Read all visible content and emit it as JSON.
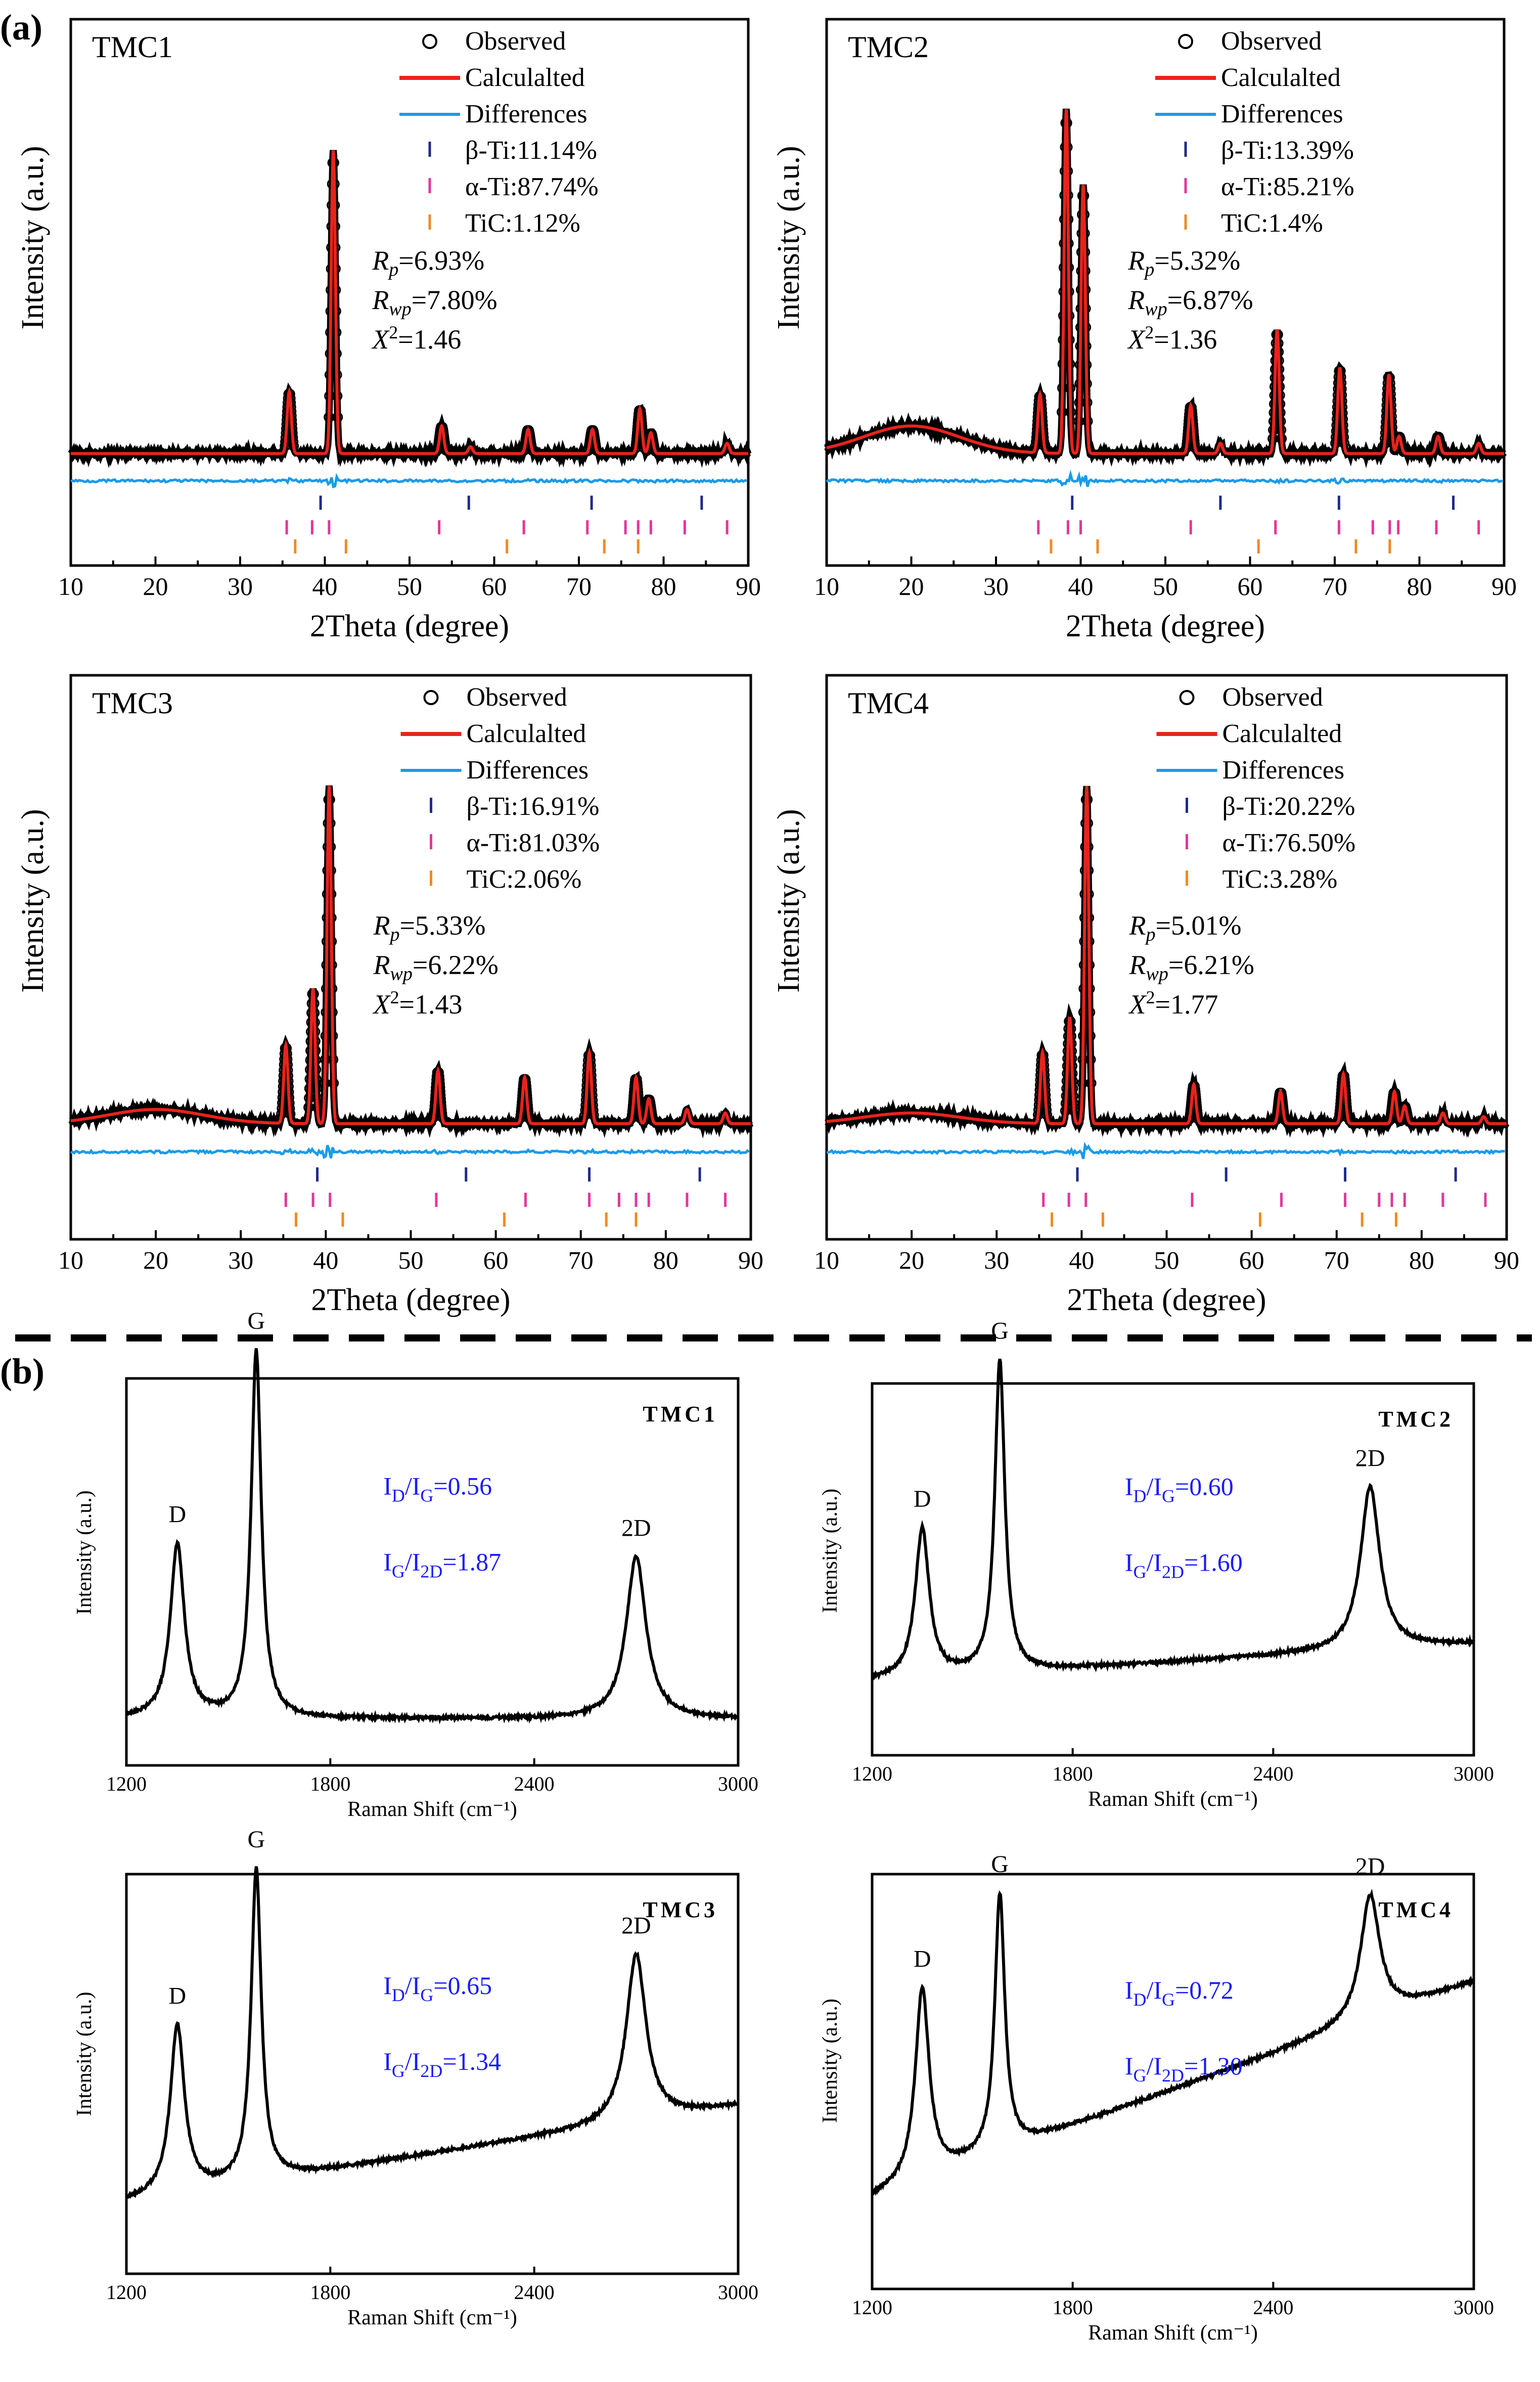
{
  "section_a_label": "(a)",
  "section_b_label": "(b)",
  "chart_data": [
    {
      "type": "line",
      "name": "TMC1",
      "title": "TMC1",
      "xlabel": "2Theta (degree)",
      "ylabel": "Intensity (a.u.)",
      "xlim": [
        10,
        90
      ],
      "xticks": [
        "10",
        "20",
        "30",
        "40",
        "50",
        "60",
        "70",
        "80",
        "90"
      ],
      "legend": [
        "Observed",
        "Calculalted",
        "Differences"
      ],
      "phases": [
        {
          "label": "β-Ti:11.14%",
          "color": "#1f2a8c",
          "positions": [
            39.5,
            57.0,
            71.5,
            84.5
          ]
        },
        {
          "label": "α-Ti:87.74%",
          "color": "#e0389a",
          "positions": [
            35.5,
            38.5,
            40.5,
            53.5,
            63.5,
            71.0,
            75.5,
            77.0,
            78.5,
            82.5,
            87.5
          ]
        },
        {
          "label": "TiC:1.12%",
          "color": "#f08a24",
          "positions": [
            36.5,
            42.5,
            61.5,
            73.0,
            77.0
          ]
        }
      ],
      "stats": {
        "rp": "=6.93%",
        "rwp": "=7.80%",
        "chi2": "=1.46"
      },
      "peaks": [
        {
          "x": 35.8,
          "h": 0.18
        },
        {
          "x": 41.0,
          "h": 0.88
        },
        {
          "x": 53.8,
          "h": 0.08
        },
        {
          "x": 57.2,
          "h": 0.02
        },
        {
          "x": 64.0,
          "h": 0.07
        },
        {
          "x": 71.6,
          "h": 0.07
        },
        {
          "x": 77.2,
          "h": 0.13
        },
        {
          "x": 78.5,
          "h": 0.06
        },
        {
          "x": 87.5,
          "h": 0.03
        }
      ],
      "hump": 0.0
    },
    {
      "type": "line",
      "name": "TMC2",
      "title": "TMC2",
      "xlabel": "2Theta (degree)",
      "ylabel": "Intensity (a.u.)",
      "xlim": [
        10,
        90
      ],
      "xticks": [
        "10",
        "20",
        "30",
        "40",
        "50",
        "60",
        "70",
        "80",
        "90"
      ],
      "legend": [
        "Observed",
        "Calculalted",
        "Differences"
      ],
      "phases": [
        {
          "label": "β-Ti:13.39%",
          "color": "#1f2a8c",
          "positions": [
            39.0,
            56.5,
            70.5,
            84.0
          ]
        },
        {
          "label": "α-Ti:85.21%",
          "color": "#e0389a",
          "positions": [
            35.0,
            38.5,
            40.0,
            53.0,
            63.0,
            70.5,
            74.5,
            76.5,
            77.5,
            82.0,
            87.0
          ]
        },
        {
          "label": "TiC:1.4%",
          "color": "#f08a24",
          "positions": [
            36.5,
            42.0,
            61.0,
            72.5,
            76.5
          ]
        }
      ],
      "stats": {
        "rp": "=5.32%",
        "rwp": "=6.87%",
        "chi2": "=1.36"
      },
      "peaks": [
        {
          "x": 35.2,
          "h": 0.17
        },
        {
          "x": 38.3,
          "h": 1.0
        },
        {
          "x": 40.3,
          "h": 0.78
        },
        {
          "x": 53.0,
          "h": 0.14
        },
        {
          "x": 56.5,
          "h": 0.03
        },
        {
          "x": 63.2,
          "h": 0.36
        },
        {
          "x": 70.6,
          "h": 0.25
        },
        {
          "x": 76.4,
          "h": 0.23
        },
        {
          "x": 77.6,
          "h": 0.05
        },
        {
          "x": 82.2,
          "h": 0.05
        },
        {
          "x": 87.0,
          "h": 0.03
        }
      ],
      "hump": 0.08
    },
    {
      "type": "line",
      "name": "TMC3",
      "title": "TMC3",
      "xlabel": "2Theta (degree)",
      "ylabel": "Intensity (a.u.)",
      "xlim": [
        10,
        90
      ],
      "xticks": [
        "10",
        "20",
        "30",
        "40",
        "50",
        "60",
        "70",
        "80",
        "90"
      ],
      "legend": [
        "Observed",
        "Calculalted",
        "Differences"
      ],
      "phases": [
        {
          "label": "β-Ti:16.91%",
          "color": "#1f2a8c",
          "positions": [
            39.0,
            56.5,
            71.0,
            84.0
          ]
        },
        {
          "label": "α-Ti:81.03%",
          "color": "#e0389a",
          "positions": [
            35.3,
            38.5,
            40.5,
            53.0,
            63.5,
            71.0,
            74.5,
            76.5,
            78.0,
            82.5,
            87.0
          ]
        },
        {
          "label": "TiC:2.06%",
          "color": "#f08a24",
          "positions": [
            36.5,
            42.0,
            61.0,
            73.0,
            76.5
          ]
        }
      ],
      "stats": {
        "rp": "=5.33%",
        "rwp": "=6.22%",
        "chi2": "=1.43"
      },
      "peaks": [
        {
          "x": 35.3,
          "h": 0.22
        },
        {
          "x": 38.5,
          "h": 0.38
        },
        {
          "x": 40.4,
          "h": 0.95
        },
        {
          "x": 53.2,
          "h": 0.15
        },
        {
          "x": 63.4,
          "h": 0.13
        },
        {
          "x": 71.0,
          "h": 0.2
        },
        {
          "x": 76.5,
          "h": 0.13
        },
        {
          "x": 78.0,
          "h": 0.07
        },
        {
          "x": 82.5,
          "h": 0.04
        },
        {
          "x": 87.0,
          "h": 0.03
        }
      ],
      "hump": 0.04
    },
    {
      "type": "line",
      "name": "TMC4",
      "title": "TMC4",
      "xlabel": "2Theta (degree)",
      "ylabel": "Intensity (a.u.)",
      "xlim": [
        10,
        90
      ],
      "xticks": [
        "10",
        "20",
        "30",
        "40",
        "50",
        "60",
        "70",
        "80",
        "90"
      ],
      "legend": [
        "Observed",
        "Calculalted",
        "Differences"
      ],
      "phases": [
        {
          "label": "β-Ti:20.22%",
          "color": "#1f2a8c",
          "positions": [
            39.5,
            57.0,
            71.0,
            84.0
          ]
        },
        {
          "label": "α-Ti:76.50%",
          "color": "#e0389a",
          "positions": [
            35.5,
            38.5,
            40.5,
            53.0,
            63.5,
            71.0,
            75.0,
            76.5,
            78.0,
            82.5,
            87.5
          ]
        },
        {
          "label": "TiC:3.28%",
          "color": "#f08a24",
          "positions": [
            36.5,
            42.5,
            61.0,
            73.0,
            77.0
          ]
        }
      ],
      "stats": {
        "rp": "=5.01%",
        "rwp": "=6.21%",
        "chi2": "=1.77"
      },
      "peaks": [
        {
          "x": 35.4,
          "h": 0.2
        },
        {
          "x": 38.6,
          "h": 0.3
        },
        {
          "x": 40.6,
          "h": 0.95
        },
        {
          "x": 53.2,
          "h": 0.11
        },
        {
          "x": 63.4,
          "h": 0.09
        },
        {
          "x": 70.8,
          "h": 0.14
        },
        {
          "x": 76.8,
          "h": 0.09
        },
        {
          "x": 78.0,
          "h": 0.05
        },
        {
          "x": 82.5,
          "h": 0.03
        },
        {
          "x": 87.3,
          "h": 0.02
        }
      ],
      "hump": 0.03
    },
    {
      "type": "line",
      "name": "Raman TMC1",
      "title": "TMC1",
      "xlabel": "Raman Shift (cm⁻¹)",
      "ylabel": "Intensity (a.u.)",
      "xlim": [
        1200,
        3000
      ],
      "xticks": [
        "1200",
        "1800",
        "2400",
        "3000"
      ],
      "ratio_dg": "=0.56",
      "ratio_g2d": "=1.87",
      "peak_labels": [
        "D",
        "G",
        "2D"
      ],
      "peaks": [
        {
          "x": 1350,
          "h": 0.45
        },
        {
          "x": 1582,
          "h": 0.95
        },
        {
          "x": 2700,
          "h": 0.42
        }
      ],
      "baseline_start": 0.12,
      "baseline_end": 0.12
    },
    {
      "type": "line",
      "name": "Raman TMC2",
      "title": "TMC2",
      "xlabel": "Raman Shift (cm⁻¹)",
      "ylabel": "Intensity (a.u.)",
      "xlim": [
        1200,
        3000
      ],
      "xticks": [
        "1200",
        "1800",
        "2400",
        "3000"
      ],
      "ratio_dg": "=0.60",
      "ratio_g2d": "=1.60",
      "peak_labels": [
        "D",
        "G",
        "2D"
      ],
      "peaks": [
        {
          "x": 1350,
          "h": 0.4
        },
        {
          "x": 1582,
          "h": 0.84
        },
        {
          "x": 2690,
          "h": 0.44
        }
      ],
      "baseline_start": 0.2,
      "baseline_end": 0.3
    },
    {
      "type": "line",
      "name": "Raman TMC3",
      "title": "TMC3",
      "xlabel": "Raman Shift (cm⁻¹)",
      "ylabel": "Intensity (a.u.)",
      "xlim": [
        1200,
        3000
      ],
      "xticks": [
        "1200",
        "1800",
        "2400",
        "3000"
      ],
      "ratio_dg": "=0.65",
      "ratio_g2d": "=1.34",
      "peak_labels": [
        "D",
        "G",
        "2D"
      ],
      "peaks": [
        {
          "x": 1350,
          "h": 0.42
        },
        {
          "x": 1582,
          "h": 0.78
        },
        {
          "x": 2700,
          "h": 0.42
        }
      ],
      "baseline_start": 0.18,
      "baseline_end": 0.42
    },
    {
      "type": "line",
      "name": "Raman TMC4",
      "title": "TMC4",
      "xlabel": "Raman Shift (cm⁻¹)",
      "ylabel": "Intensity (a.u.)",
      "xlim": [
        1200,
        3000
      ],
      "xticks": [
        "1200",
        "1800",
        "2400",
        "3000"
      ],
      "ratio_dg": "=0.72",
      "ratio_g2d": "=1.30",
      "peak_labels": [
        "D",
        "G",
        "2D"
      ],
      "peaks": [
        {
          "x": 1350,
          "h": 0.46
        },
        {
          "x": 1582,
          "h": 0.62
        },
        {
          "x": 2690,
          "h": 0.3
        }
      ],
      "baseline_start": 0.22,
      "baseline_end": 0.74
    }
  ]
}
